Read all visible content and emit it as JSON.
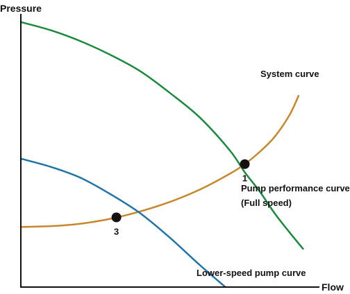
{
  "chart_data": {
    "type": "line",
    "title": "",
    "xlabel": "Flow",
    "ylabel": "Pressure",
    "xlim": [
      0,
      100
    ],
    "ylim": [
      0,
      100
    ],
    "ticks": "none",
    "grid": false,
    "legend": "none",
    "series": [
      {
        "key": "pump_full",
        "color": "#1a8a3c",
        "points": [
          [
            0,
            97
          ],
          [
            10,
            94
          ],
          [
            20,
            90
          ],
          [
            30,
            85
          ],
          [
            40,
            79
          ],
          [
            50,
            71
          ],
          [
            60,
            62
          ],
          [
            70,
            50
          ],
          [
            75,
            42
          ],
          [
            80,
            35
          ],
          [
            85,
            27
          ],
          [
            90,
            20
          ],
          [
            94.5,
            14
          ]
        ]
      },
      {
        "key": "system",
        "color": "#c8862a",
        "points": [
          [
            0,
            22
          ],
          [
            10,
            22.3
          ],
          [
            20,
            23.2
          ],
          [
            30,
            25
          ],
          [
            40,
            27.7
          ],
          [
            50,
            31.2
          ],
          [
            60,
            35.7
          ],
          [
            70,
            41.5
          ],
          [
            75,
            45
          ],
          [
            80,
            49.5
          ],
          [
            85,
            55
          ],
          [
            90,
            63
          ],
          [
            93,
            70
          ]
        ]
      },
      {
        "key": "pump_low",
        "color": "#1f74a7",
        "points": [
          [
            0,
            47
          ],
          [
            10,
            44
          ],
          [
            20,
            40
          ],
          [
            30,
            34
          ],
          [
            40,
            27
          ],
          [
            50,
            18
          ],
          [
            60,
            8
          ],
          [
            68.5,
            0
          ]
        ]
      }
    ],
    "operating_points": [
      {
        "label": "1",
        "x": 75,
        "y": 45
      },
      {
        "label": "3",
        "x": 32,
        "y": 25.5
      }
    ],
    "curve_labels": {
      "system": "System curve",
      "pump_full_line1": "Pump performance curve",
      "pump_full_line2": "(Full speed)",
      "pump_low": "Lower-speed pump curve"
    }
  }
}
